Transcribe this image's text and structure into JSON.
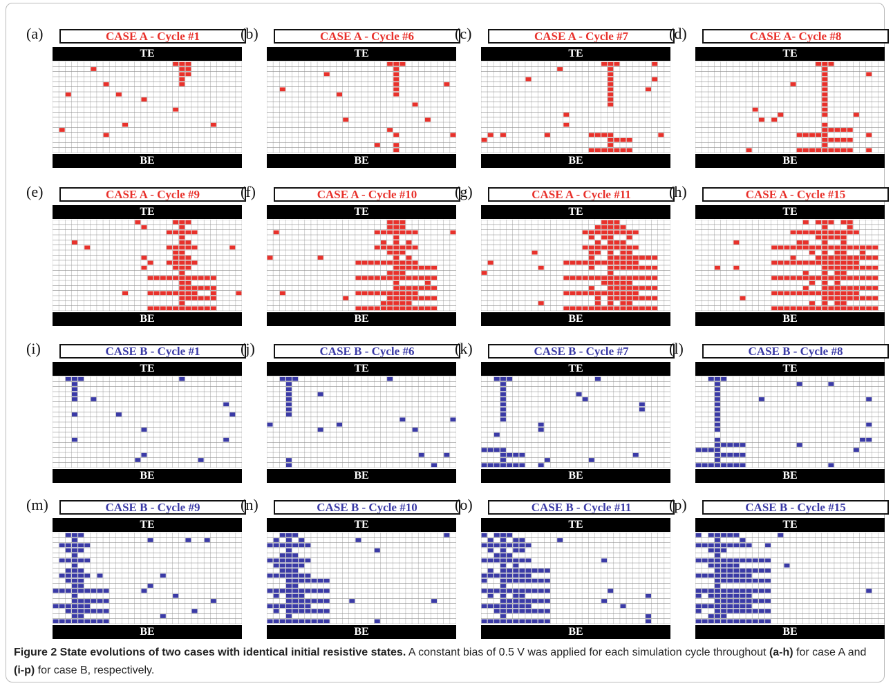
{
  "colors": {
    "caseA": "#e8312b",
    "caseB": "#3a3aa6",
    "grid": "#8f8f8f",
    "electrode": "#000000"
  },
  "grid_rows": 18,
  "grid_cols": 30,
  "electrodes": {
    "top": "TE",
    "bottom": "BE"
  },
  "panels": [
    {
      "letter": "(a)",
      "title": "CASE A - Cycle #1",
      "case": "A"
    },
    {
      "letter": "(b)",
      "title": "CASE A - Cycle #6",
      "case": "A"
    },
    {
      "letter": "(c)",
      "title": "CASE A - Cycle #7",
      "case": "A"
    },
    {
      "letter": "(d)",
      "title": "CASE A- Cycle #8",
      "case": "A"
    },
    {
      "letter": "(e)",
      "title": "CASE A - Cycle #9",
      "case": "A"
    },
    {
      "letter": "(f)",
      "title": "CASE A - Cycle #10",
      "case": "A"
    },
    {
      "letter": "(g)",
      "title": "CASE A - Cycle #11",
      "case": "A"
    },
    {
      "letter": "(h)",
      "title": "CASE A - Cycle #15",
      "case": "A"
    },
    {
      "letter": "(i)",
      "title": "CASE B - Cycle #1",
      "case": "B"
    },
    {
      "letter": "(j)",
      "title": "CASE B - Cycle #6",
      "case": "B"
    },
    {
      "letter": "(k)",
      "title": "CASE B - Cycle #7",
      "case": "B"
    },
    {
      "letter": "(l)",
      "title": "CASE B - Cycle #8",
      "case": "B"
    },
    {
      "letter": "(m)",
      "title": "CASE B - Cycle #9",
      "case": "B"
    },
    {
      "letter": "(n)",
      "title": "CASE B - Cycle #10",
      "case": "B"
    },
    {
      "letter": "(o)",
      "title": "CASE B - Cycle #11",
      "case": "B"
    },
    {
      "letter": "(p)",
      "title": "CASE B - Cycle #15",
      "case": "B"
    }
  ],
  "caption": {
    "title": "Figure 2 State evolutions of two cases with identical initial resistive states.",
    "text_1": " A constant bias of 0.5 V was applied for each simulation cycle throughout ",
    "range_a": "(a-h)",
    "text_2": " for case A and ",
    "range_b": "(i-p)",
    "text_3": " for case B, respectively."
  }
}
